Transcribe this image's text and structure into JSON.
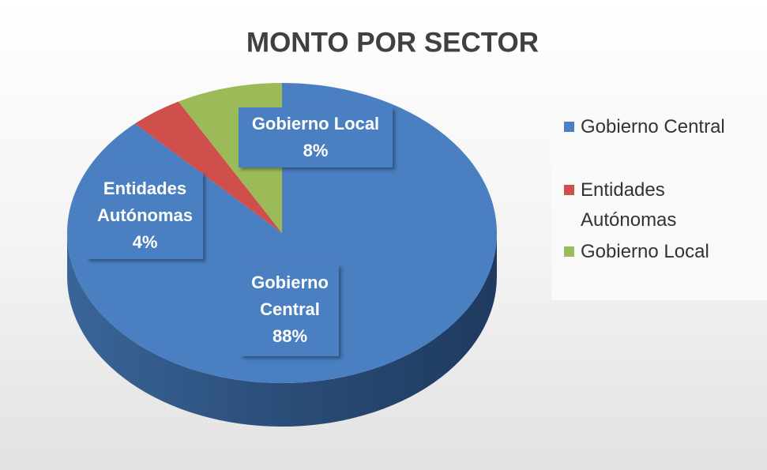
{
  "chart_data": {
    "type": "pie",
    "title": "MONTO POR SECTOR",
    "categories": [
      "Gobierno Central",
      "Entidades Autónomas",
      "Gobierno Local"
    ],
    "values": [
      88,
      4,
      8
    ],
    "value_labels": [
      "88%",
      "4%",
      "8%"
    ],
    "colors": [
      "#4a7fc1",
      "#cf4f4d",
      "#9bbb59"
    ],
    "legend": "right",
    "three_d": true
  }
}
